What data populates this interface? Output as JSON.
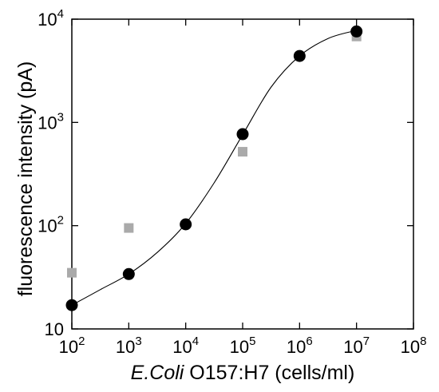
{
  "chart_data": {
    "type": "scatter",
    "xscale": "log",
    "yscale": "log",
    "xlim": [
      100,
      100000000
    ],
    "ylim": [
      10,
      10000
    ],
    "grid": false,
    "legend": "none",
    "xlabel": {
      "italic": "E.Coli",
      "rest": " O157:H7 (cells/ml)"
    },
    "ylabel": "fluorescence intensity (pA)",
    "x_ticks": [
      {
        "value": 100,
        "base": "10",
        "exp": "2"
      },
      {
        "value": 1000,
        "base": "10",
        "exp": "3"
      },
      {
        "value": 10000,
        "base": "10",
        "exp": "4"
      },
      {
        "value": 100000,
        "base": "10",
        "exp": "5"
      },
      {
        "value": 1000000,
        "base": "10",
        "exp": "6"
      },
      {
        "value": 10000000,
        "base": "10",
        "exp": "7"
      },
      {
        "value": 100000000,
        "base": "10",
        "exp": "8"
      }
    ],
    "y_ticks": [
      {
        "value": 10,
        "base": "10",
        "exp": ""
      },
      {
        "value": 100,
        "base": "10",
        "exp": "2"
      },
      {
        "value": 1000,
        "base": "10",
        "exp": "3"
      },
      {
        "value": 10000,
        "base": "10",
        "exp": "4"
      }
    ],
    "series": [
      {
        "marker": "circle",
        "color": "#000000",
        "x": [
          100,
          1000,
          10000,
          100000,
          1000000,
          10000000
        ],
        "y": [
          17,
          34,
          103,
          770,
          4400,
          7600
        ]
      },
      {
        "marker": "square",
        "color": "#aaaaaa",
        "x": [
          100,
          1000,
          100000,
          10000000
        ],
        "y": [
          35,
          95,
          520,
          6800
        ]
      }
    ],
    "fit_curve": {
      "color": "#000000",
      "x": [
        100,
        316,
        1000,
        3162,
        10000,
        31623,
        100000,
        316228,
        1000000,
        3162278,
        10000000
      ],
      "y": [
        17,
        24,
        34,
        55,
        105,
        260,
        760,
        2200,
        4400,
        6500,
        7800
      ]
    }
  }
}
